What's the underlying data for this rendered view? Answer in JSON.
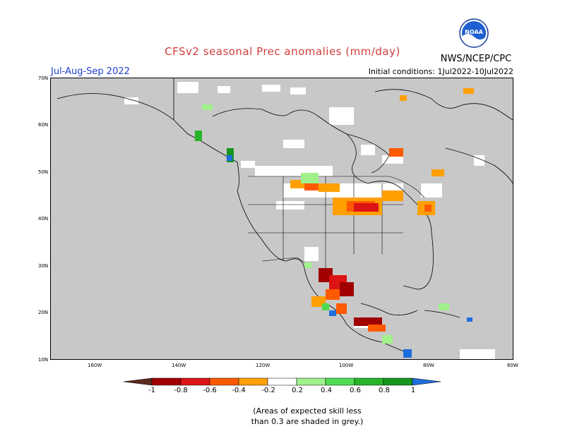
{
  "title": "CFSv2 seasonal Prec anomalies (mm/day)",
  "agency": "NWS/NCEP/CPC",
  "season": "Jul-Aug-Sep 2022",
  "initial_conditions": "Initial conditions: 1Jul2022-10Jul2022",
  "logo": {
    "icon": "noaa-logo-icon",
    "text": "NOAA"
  },
  "map": {
    "land_color": "#c8c8c8",
    "ocean_color": "#c8c8c8",
    "lat_labels": [
      "70N",
      "60N",
      "50N",
      "40N",
      "30N",
      "20N",
      "10N"
    ],
    "lon_labels": [
      "160W",
      "140W",
      "120W",
      "100W",
      "80W",
      "60W"
    ]
  },
  "colorbar": {
    "labels": [
      "-1",
      "-0.8",
      "-0.6",
      "-0.4",
      "-0.2",
      "0.2",
      "0.4",
      "0.6",
      "0.8",
      "1"
    ],
    "colors": [
      "#5a2a1c",
      "#a00000",
      "#dc1414",
      "#ff5a00",
      "#ffa000",
      "#ffffff",
      "#a0f08c",
      "#50dc50",
      "#28b428",
      "#14961e",
      "#1e6edc"
    ]
  },
  "note": [
    "(Areas of expected skill less",
    "than 0.3 are shaded in grey.)"
  ]
}
